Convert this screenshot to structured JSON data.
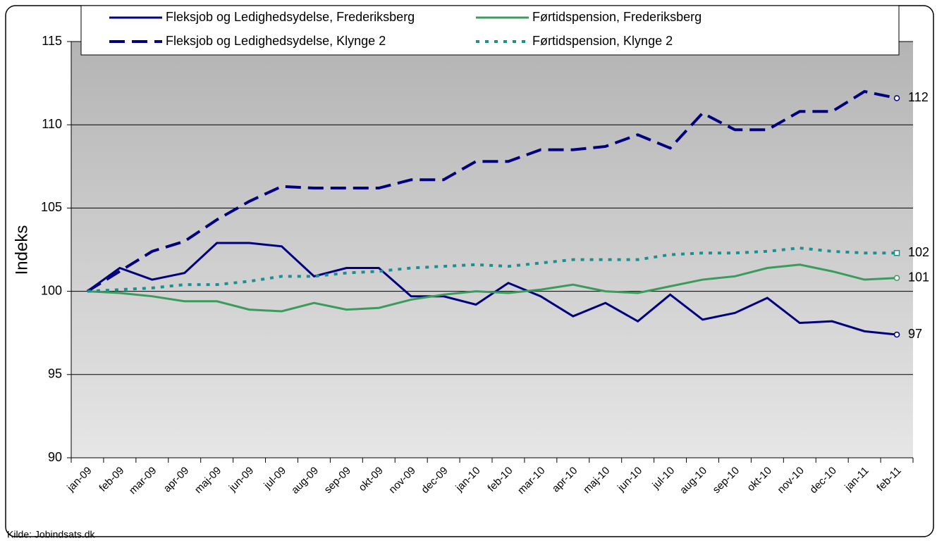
{
  "chart_data": {
    "type": "line",
    "y_label": "Indeks",
    "source": "Kilde: Jobindsats.dk",
    "categories": [
      "jan-09",
      "feb-09",
      "mar-09",
      "apr-09",
      "maj-09",
      "jun-09",
      "jul-09",
      "aug-09",
      "sep-09",
      "okt-09",
      "nov-09",
      "dec-09",
      "jan-10",
      "feb-10",
      "mar-10",
      "apr-10",
      "maj-10",
      "jun-10",
      "jul-10",
      "aug-10",
      "sep-10",
      "okt-10",
      "nov-10",
      "dec-10",
      "jan-11",
      "feb-11"
    ],
    "series": [
      {
        "name": "Fleksjob og Ledighedsydelse, Frederiksberg",
        "color": "#000080",
        "dash": "solid",
        "marker": "circle",
        "values": [
          100,
          101.4,
          100.7,
          101.1,
          102.9,
          102.9,
          102.7,
          100.9,
          101.4,
          101.4,
          99.7,
          99.7,
          99.2,
          100.5,
          99.7,
          98.5,
          99.3,
          98.2,
          99.8,
          98.3,
          98.7,
          99.6,
          98.1,
          98.2,
          97.6,
          97.4
        ],
        "value_labels": [
          null,
          null,
          null,
          null,
          null,
          null,
          null,
          null,
          null,
          null,
          null,
          null,
          null,
          null,
          null,
          null,
          null,
          null,
          null,
          null,
          null,
          null,
          null,
          null,
          null,
          "97"
        ]
      },
      {
        "name": "Førtidspension, Frederiksberg",
        "color": "#3a9c5c",
        "dash": "solid",
        "marker": "circle",
        "values": [
          100,
          99.9,
          99.7,
          99.4,
          99.4,
          98.9,
          98.8,
          99.3,
          98.9,
          99.0,
          99.5,
          99.8,
          100.0,
          99.9,
          100.1,
          100.4,
          100.0,
          99.9,
          100.3,
          100.7,
          100.9,
          101.4,
          101.6,
          101.2,
          100.7,
          100.8
        ],
        "value_labels": [
          null,
          null,
          null,
          null,
          null,
          null,
          null,
          null,
          null,
          null,
          null,
          null,
          null,
          null,
          null,
          null,
          null,
          null,
          null,
          null,
          null,
          null,
          null,
          null,
          null,
          "101"
        ]
      },
      {
        "name": "Fleksjob og Ledighedsydelse, Klynge 2",
        "color": "#000080",
        "dash": "dashed",
        "marker": "circle",
        "values": [
          100,
          101.2,
          102.4,
          103.0,
          104.3,
          105.4,
          106.3,
          106.2,
          106.2,
          106.2,
          106.7,
          106.7,
          107.8,
          107.8,
          108.5,
          108.5,
          108.7,
          109.4,
          108.6,
          110.7,
          109.7,
          109.7,
          110.8,
          110.8,
          112.0,
          111.6
        ],
        "value_labels": [
          null,
          null,
          null,
          null,
          null,
          null,
          null,
          null,
          null,
          null,
          null,
          null,
          null,
          null,
          null,
          null,
          null,
          null,
          null,
          null,
          null,
          null,
          null,
          null,
          null,
          "112"
        ]
      },
      {
        "name": "Førtidspension, Klynge 2",
        "color": "#1a9090",
        "dash": "dotted",
        "marker": "square",
        "values": [
          100,
          100.1,
          100.2,
          100.4,
          100.4,
          100.6,
          100.9,
          100.9,
          101.1,
          101.2,
          101.4,
          101.5,
          101.6,
          101.5,
          101.7,
          101.9,
          101.9,
          101.9,
          102.2,
          102.3,
          102.3,
          102.4,
          102.6,
          102.4,
          102.3,
          102.3
        ],
        "value_labels": [
          null,
          null,
          null,
          null,
          null,
          null,
          null,
          null,
          null,
          null,
          null,
          null,
          null,
          null,
          null,
          null,
          null,
          null,
          null,
          null,
          null,
          null,
          null,
          null,
          null,
          "102"
        ]
      }
    ],
    "ylim": [
      90,
      115
    ],
    "yticks": [
      90,
      95,
      100,
      105,
      110,
      115
    ],
    "grid": true,
    "legend": "top"
  }
}
